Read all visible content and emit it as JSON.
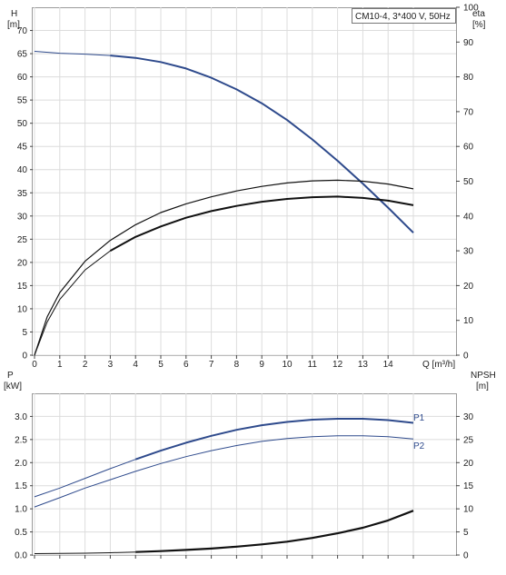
{
  "chart_data": [
    {
      "type": "line",
      "title": "CM10-4, 3*400 V, 50Hz",
      "ylabel_left": "H\n[m]",
      "ylabel_right": "eta\n[%]",
      "xlabel": "Q [m³/h]",
      "xlim": [
        0,
        15.5
      ],
      "ylim_left": [
        0,
        75
      ],
      "ylim_right": [
        0,
        100
      ],
      "x_ticks": [
        "0",
        "1",
        "2",
        "3",
        "4",
        "5",
        "6",
        "7",
        "8",
        "9",
        "10",
        "11",
        "12",
        "13",
        "14"
      ],
      "left_ticks": [
        "0",
        "5",
        "10",
        "15",
        "20",
        "25",
        "30",
        "35",
        "40",
        "45",
        "50",
        "55",
        "60",
        "65",
        "70"
      ],
      "right_ticks": [
        "0",
        "10",
        "20",
        "30",
        "40",
        "50",
        "60",
        "70",
        "80",
        "90",
        "100"
      ],
      "grid": true,
      "series": [
        {
          "axis": "left",
          "color": "#2e4a8c",
          "width": 2.0,
          "x": [
            0,
            1,
            2,
            3,
            4,
            5,
            6,
            7,
            8,
            9,
            10,
            11,
            12,
            13,
            14,
            15
          ],
          "y": [
            65.5,
            65.1,
            64.9,
            64.6,
            64.1,
            63.2,
            61.8,
            59.8,
            57.3,
            54.3,
            50.7,
            46.5,
            41.9,
            37.0,
            31.8,
            26.4
          ],
          "dash": [
            0,
            1,
            2
          ]
        },
        {
          "axis": "right",
          "color": "#111111",
          "width": 1.2,
          "x": [
            0,
            0.5,
            1,
            2,
            3,
            4,
            5,
            6,
            7,
            8,
            9,
            10,
            11,
            12,
            13,
            14,
            15
          ],
          "y": [
            0,
            11,
            18,
            27,
            33,
            37.5,
            41,
            43.5,
            45.5,
            47.2,
            48.5,
            49.5,
            50.1,
            50.3,
            50.0,
            49.2,
            47.8
          ]
        },
        {
          "axis": "right",
          "color": "#111111",
          "width": 2.0,
          "x": [
            0,
            0.5,
            1,
            2,
            3,
            4,
            5,
            6,
            7,
            8,
            9,
            10,
            11,
            12,
            13,
            14,
            15
          ],
          "y": [
            0,
            9.5,
            16,
            24.5,
            30,
            34,
            37,
            39.5,
            41.4,
            42.9,
            44.1,
            44.9,
            45.4,
            45.6,
            45.2,
            44.4,
            43.1
          ],
          "dash": [
            0,
            1,
            2,
            3
          ]
        }
      ]
    },
    {
      "type": "line",
      "ylabel_left": "P\n[kW]",
      "ylabel_right": "NPSH\n[m]",
      "xlim": [
        0,
        15.5
      ],
      "ylim_left": [
        0,
        3.5
      ],
      "ylim_right": [
        0,
        35
      ],
      "left_ticks": [
        "0.0",
        "0.5",
        "1.0",
        "1.5",
        "2.0",
        "2.5",
        "3.0"
      ],
      "right_ticks": [
        "0",
        "5",
        "10",
        "15",
        "20",
        "25",
        "30"
      ],
      "grid": true,
      "series": [
        {
          "name": "P1",
          "axis": "left",
          "color": "#2e4a8c",
          "width": 2.0,
          "x": [
            0,
            1,
            2,
            3,
            4,
            5,
            6,
            7,
            8,
            9,
            10,
            11,
            12,
            13,
            14,
            15
          ],
          "y": [
            1.26,
            1.45,
            1.66,
            1.87,
            2.07,
            2.26,
            2.43,
            2.58,
            2.71,
            2.81,
            2.88,
            2.93,
            2.95,
            2.95,
            2.92,
            2.86
          ],
          "dash": [
            0,
            1,
            2,
            3
          ]
        },
        {
          "name": "P2",
          "axis": "left",
          "color": "#2e4a8c",
          "width": 1.0,
          "x": [
            0,
            1,
            2,
            3,
            4,
            5,
            6,
            7,
            8,
            9,
            10,
            11,
            12,
            13,
            14,
            15
          ],
          "y": [
            1.04,
            1.24,
            1.45,
            1.63,
            1.81,
            1.98,
            2.13,
            2.26,
            2.37,
            2.46,
            2.52,
            2.56,
            2.58,
            2.58,
            2.56,
            2.51
          ]
        },
        {
          "name": "NPSH",
          "axis": "right",
          "color": "#111111",
          "width": 2.2,
          "x": [
            0,
            1,
            2,
            3,
            4,
            5,
            6,
            7,
            8,
            9,
            10,
            11,
            12,
            13,
            14,
            15
          ],
          "y": [
            0.3,
            0.35,
            0.4,
            0.5,
            0.65,
            0.85,
            1.1,
            1.4,
            1.8,
            2.3,
            2.9,
            3.7,
            4.7,
            5.9,
            7.5,
            9.6
          ],
          "dash": [
            0,
            1,
            2,
            3
          ]
        }
      ],
      "labels": [
        "P1",
        "P2"
      ]
    }
  ]
}
